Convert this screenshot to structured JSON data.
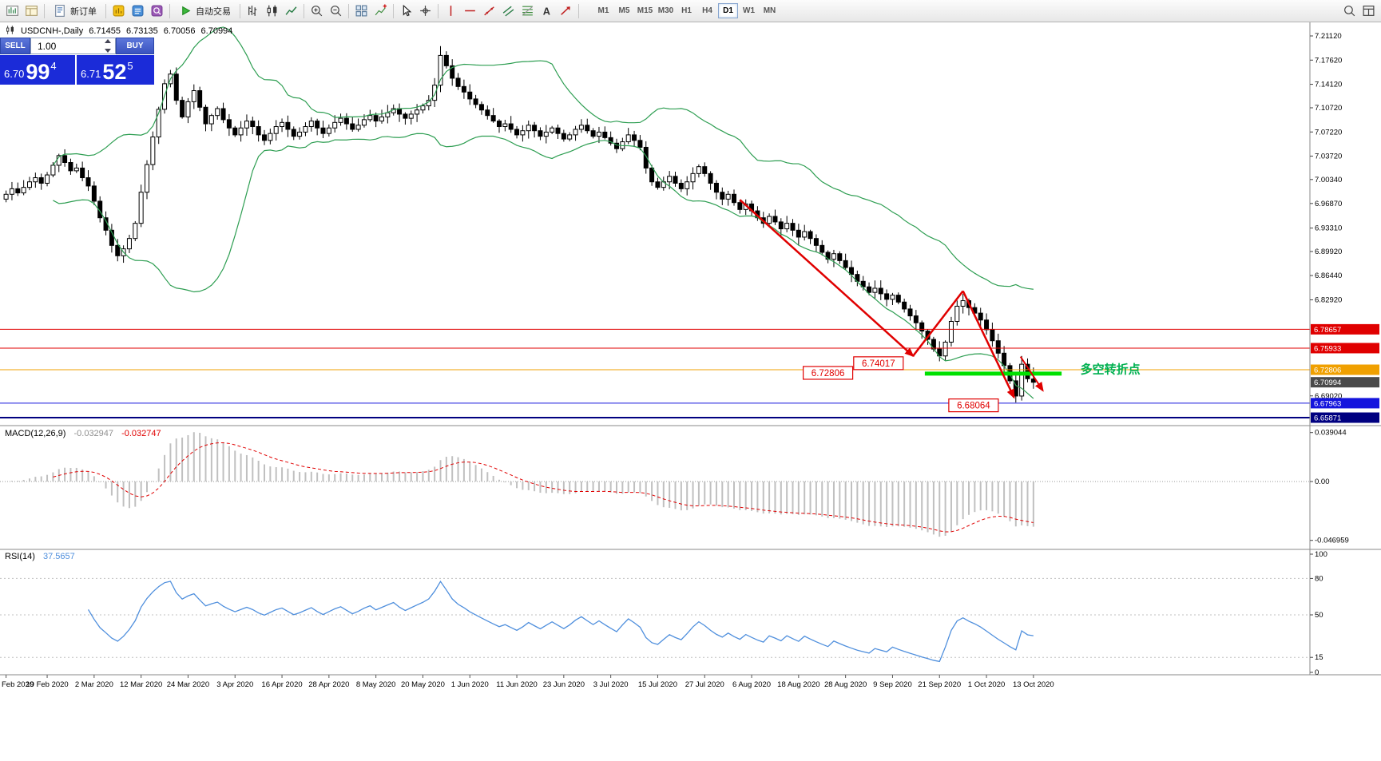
{
  "toolbar": {
    "new_order_label": "新订单",
    "autotrading_label": "自动交易",
    "items": [
      "new-chart",
      "profiles",
      "|",
      "new-order",
      "|",
      "market-watch",
      "data-window",
      "navigator",
      "|",
      "autotrading",
      "|",
      "bar-chart",
      "candlestick",
      "line-chart",
      "|",
      "zoom-in",
      "zoom-out",
      "|",
      "tile-windows",
      "indicators",
      "|",
      "cursor",
      "crosshair",
      "|",
      "vertical-line",
      "horizontal-line",
      "trendline",
      "channel",
      "fibonacci",
      "text",
      "arrows",
      "|"
    ],
    "timeframes": [
      "M1",
      "M5",
      "M15",
      "M30",
      "H1",
      "H4",
      "D1",
      "W1",
      "MN"
    ],
    "active_timeframe": "D1",
    "right_items": [
      "search",
      "layout"
    ]
  },
  "symbol_header": {
    "title": "USDCNH-,Daily",
    "open": "6.71455",
    "high": "6.73135",
    "low": "6.70056",
    "close": "6.70994"
  },
  "trade_panel": {
    "sell_label": "SELL",
    "buy_label": "BUY",
    "volume": "1.00",
    "bid": {
      "prefix": "6.70",
      "big": "99",
      "sup": "4"
    },
    "ask": {
      "prefix": "6.71",
      "big": "52",
      "sup": "5"
    }
  },
  "chart_data": {
    "type": "candlestick",
    "title": "USDCNH- Daily",
    "grid": false,
    "ylim": [
      6.647,
      7.231
    ],
    "first_open": 6.975,
    "closes": [
      6.982,
      6.99,
      6.984,
      6.992,
      7.0,
      7.006,
      6.998,
      7.01,
      7.024,
      7.038,
      7.028,
      7.016,
      7.02,
      7.006,
      6.994,
      6.972,
      6.948,
      6.93,
      6.908,
      6.893,
      6.903,
      6.918,
      6.94,
      6.985,
      7.025,
      7.065,
      7.105,
      7.142,
      7.156,
      7.118,
      7.094,
      7.116,
      7.132,
      7.108,
      7.084,
      7.096,
      7.106,
      7.09,
      7.078,
      7.068,
      7.078,
      7.088,
      7.08,
      7.068,
      7.06,
      7.07,
      7.08,
      7.086,
      7.076,
      7.066,
      7.072,
      7.08,
      7.088,
      7.078,
      7.07,
      7.078,
      7.086,
      7.092,
      7.084,
      7.076,
      7.082,
      7.09,
      7.096,
      7.088,
      7.094,
      7.1,
      7.106,
      7.098,
      7.092,
      7.098,
      7.104,
      7.11,
      7.118,
      7.14,
      7.183,
      7.168,
      7.15,
      7.138,
      7.13,
      7.12,
      7.112,
      7.104,
      7.096,
      7.088,
      7.08,
      7.084,
      7.076,
      7.068,
      7.074,
      7.082,
      7.074,
      7.066,
      7.072,
      7.078,
      7.07,
      7.062,
      7.068,
      7.076,
      7.082,
      7.074,
      7.066,
      7.072,
      7.064,
      7.056,
      7.048,
      7.058,
      7.068,
      7.06,
      7.05,
      7.02,
      7.0,
      6.992,
      7.0,
      7.008,
      6.998,
      6.99,
      7.0,
      7.012,
      7.022,
      7.012,
      6.998,
      6.985,
      6.975,
      6.982,
      6.97,
      6.96,
      6.968,
      6.958,
      6.948,
      6.94,
      6.95,
      6.942,
      6.932,
      6.94,
      6.93,
      6.92,
      6.928,
      6.918,
      6.908,
      6.898,
      6.888,
      6.896,
      6.886,
      6.876,
      6.866,
      6.856,
      6.848,
      6.84,
      6.846,
      6.838,
      6.83,
      6.836,
      6.826,
      6.816,
      6.806,
      6.796,
      6.784,
      6.772,
      6.758,
      6.748,
      6.768,
      6.798,
      6.82,
      6.828,
      6.818,
      6.81,
      6.8,
      6.786,
      6.77,
      6.752,
      6.734,
      6.712,
      6.69,
      6.736,
      6.715,
      6.71
    ],
    "wick_overrides": {
      "19": {
        "l": 6.885
      },
      "28": {
        "h": 7.162
      },
      "74": {
        "h": 7.1965
      },
      "159": {
        "l": 6.7402
      },
      "172": {
        "l": 6.6806
      },
      "173": {
        "h": 6.748
      },
      "175": {
        "o": 6.71455,
        "h": 6.73135,
        "l": 6.70056,
        "c": 6.70994
      }
    },
    "y_ticks": [
      {
        "p": 7.2112,
        "t": "7.21120"
      },
      {
        "p": 7.1762,
        "t": "7.17620"
      },
      {
        "p": 7.1412,
        "t": "7.14120"
      },
      {
        "p": 7.1072,
        "t": "7.10720"
      },
      {
        "p": 7.0722,
        "t": "7.07220"
      },
      {
        "p": 7.0372,
        "t": "7.03720"
      },
      {
        "p": 7.0034,
        "t": "7.00340"
      },
      {
        "p": 6.9687,
        "t": "6.96870"
      },
      {
        "p": 6.9331,
        "t": "6.93310"
      },
      {
        "p": 6.8992,
        "t": "6.89920"
      },
      {
        "p": 6.8644,
        "t": "6.86440"
      },
      {
        "p": 6.8292,
        "t": "6.82920"
      },
      {
        "p": 6.6902,
        "t": "6.69020"
      }
    ],
    "price_tags": [
      {
        "p": 6.78657,
        "t": "6.78657",
        "bg": "#e00000"
      },
      {
        "p": 6.75933,
        "t": "6.75933",
        "bg": "#e00000"
      },
      {
        "p": 6.72806,
        "t": "6.72806",
        "bg": "#f0a000"
      },
      {
        "p": 6.70994,
        "t": "6.70994",
        "bg": "#4a4a4a"
      },
      {
        "p": 6.67963,
        "t": "6.67963",
        "bg": "#1414dd"
      },
      {
        "p": 6.65871,
        "t": "6.65871",
        "bg": "#000080"
      }
    ],
    "level_lines": [
      {
        "p": 6.78657,
        "color": "#e00000",
        "w": 1
      },
      {
        "p": 6.75933,
        "color": "#e00000",
        "w": 1
      },
      {
        "p": 6.72806,
        "color": "#f0a000",
        "w": 1
      },
      {
        "p": 6.67963,
        "color": "#1414dd",
        "w": 1
      },
      {
        "p": 6.65871,
        "color": "#000080",
        "w": 2
      }
    ],
    "support_zone": {
      "d1": 156.5,
      "d2": 179.8,
      "price": 6.7225,
      "color": "#00e000"
    },
    "annotations": {
      "price_labels": [
        {
          "d": 140,
          "price": 6.7235,
          "text": "6.72806"
        },
        {
          "d": 148.6,
          "price": 6.7375,
          "text": "6.74017"
        },
        {
          "d": 164.8,
          "price": 6.6765,
          "text": "6.68064"
        }
      ],
      "note": {
        "d": 183,
        "price": 6.7285,
        "text": "多空转折点",
        "color": "#00b050"
      },
      "arrows": [
        {
          "from": [
            125,
            6.974
          ],
          "to": [
            154.5,
            6.748
          ],
          "head": true,
          "w": 2.5
        },
        {
          "from": [
            154.5,
            6.748
          ],
          "to": [
            163,
            6.842
          ],
          "head": false,
          "w": 2.5
        },
        {
          "from": [
            163,
            6.842
          ],
          "to": [
            171.7,
            6.688
          ],
          "head": true,
          "w": 2.5
        },
        {
          "from": [
            172.8,
            6.747
          ],
          "to": [
            176.6,
            6.698
          ],
          "head": true,
          "w": 2
        }
      ]
    },
    "indicators": {
      "bollinger": {
        "period": 20,
        "deviation": 2,
        "color": "#2e9e52"
      },
      "macd": {
        "label": "MACD(12,26,9)",
        "fast": 12,
        "slow": 26,
        "signal": 9,
        "value_main": "-0.032947",
        "value_signal": "-0.032747",
        "axis": [
          {
            "v": 0.039044,
            "t": "0.039044"
          },
          {
            "v": 0,
            "t": "0.00"
          },
          {
            "v": -0.046959,
            "t": "-0.046959"
          }
        ],
        "hist_color": "#c0c0c0",
        "signal_color": "#e00000"
      },
      "rsi": {
        "label": "RSI(14)",
        "period": 14,
        "value": "37.5657",
        "axis": [
          {
            "v": 100,
            "t": "100"
          },
          {
            "v": 80,
            "t": "80"
          },
          {
            "v": 50,
            "t": "50"
          },
          {
            "v": 15,
            "t": "15"
          },
          {
            "v": 0,
            "t": "0"
          }
        ],
        "levels": [
          80,
          50,
          15
        ],
        "color": "#4f8fdd"
      }
    },
    "x_labels": [
      {
        "d": 0,
        "t": "Feb 2020"
      },
      {
        "d": 7,
        "t": "19 Feb 2020"
      },
      {
        "d": 15,
        "t": "2 Mar 2020"
      },
      {
        "d": 23,
        "t": "12 Mar 2020"
      },
      {
        "d": 31,
        "t": "24 Mar 2020"
      },
      {
        "d": 39,
        "t": "3 Apr 2020"
      },
      {
        "d": 47,
        "t": "16 Apr 2020"
      },
      {
        "d": 55,
        "t": "28 Apr 2020"
      },
      {
        "d": 63,
        "t": "8 May 2020"
      },
      {
        "d": 71,
        "t": "20 May 2020"
      },
      {
        "d": 79,
        "t": "1 Jun 2020"
      },
      {
        "d": 87,
        "t": "11 Jun 2020"
      },
      {
        "d": 95,
        "t": "23 Jun 2020"
      },
      {
        "d": 103,
        "t": "3 Jul 2020"
      },
      {
        "d": 111,
        "t": "15 Jul 2020"
      },
      {
        "d": 119,
        "t": "27 Jul 2020"
      },
      {
        "d": 127,
        "t": "6 Aug 2020"
      },
      {
        "d": 135,
        "t": "18 Aug 2020"
      },
      {
        "d": 143,
        "t": "28 Aug 2020"
      },
      {
        "d": 151,
        "t": "9 Sep 2020"
      },
      {
        "d": 159,
        "t": "21 Sep 2020"
      },
      {
        "d": 167,
        "t": "1 Oct 2020"
      },
      {
        "d": 175,
        "t": "13 Oct 2020"
      }
    ]
  }
}
